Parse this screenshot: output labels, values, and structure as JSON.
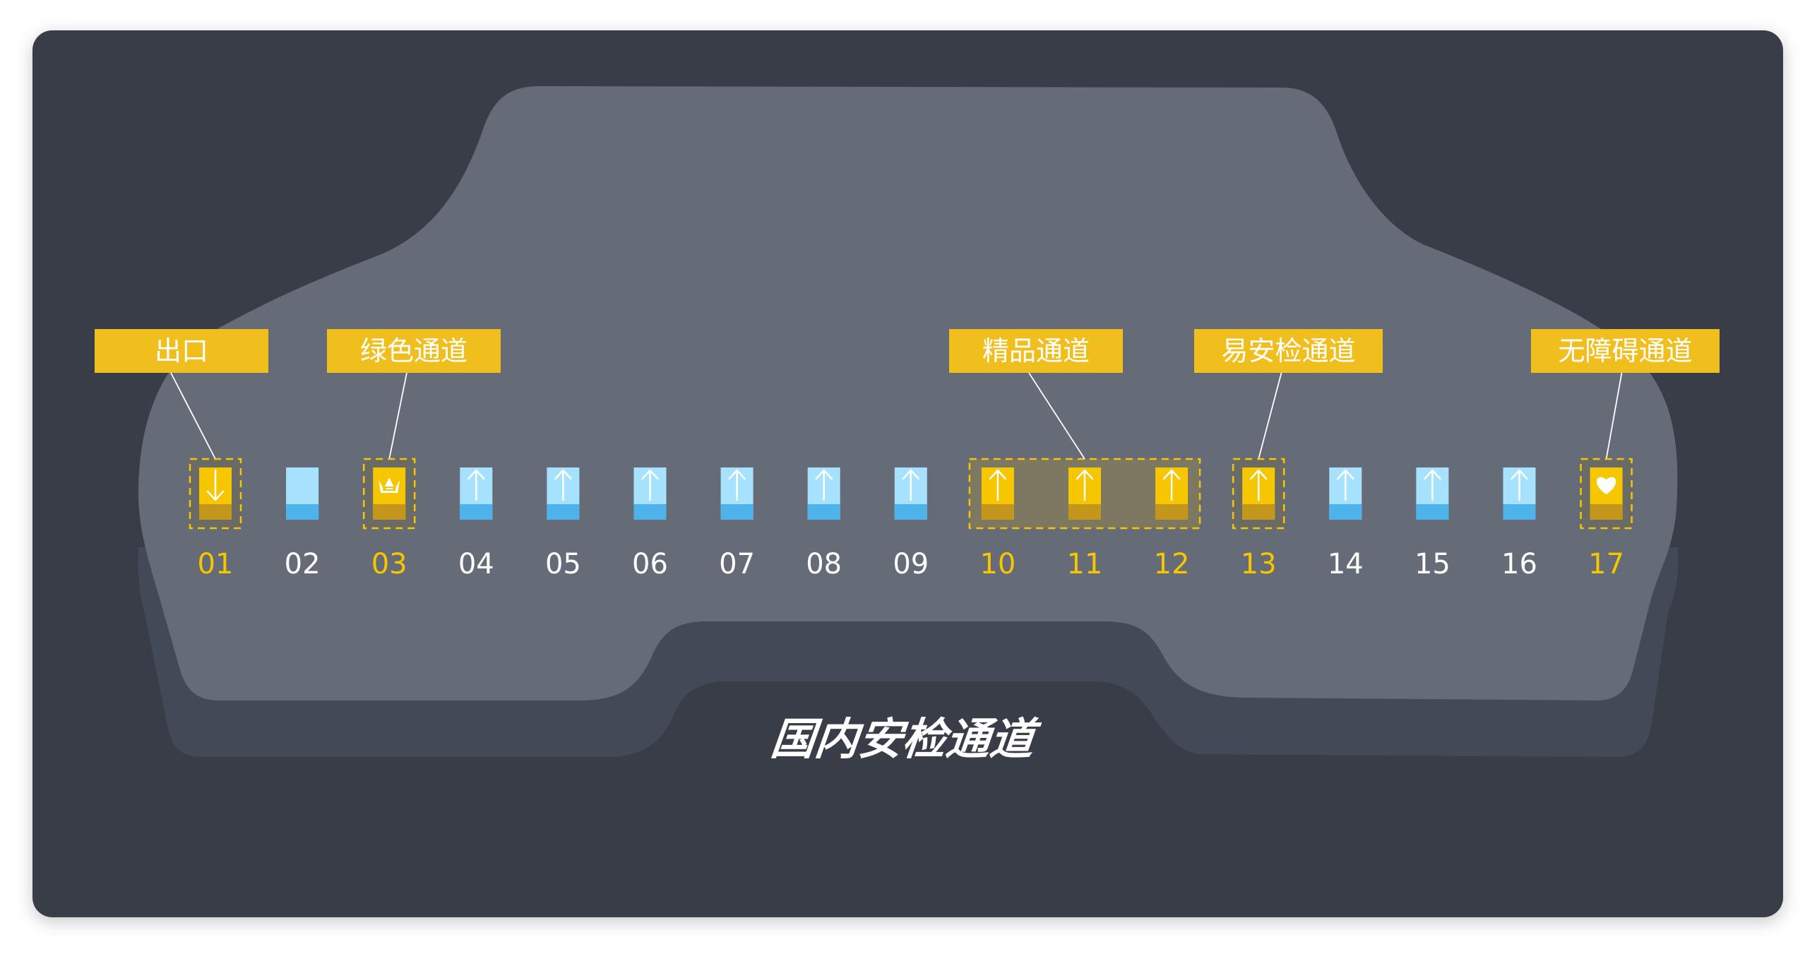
{
  "title": "国内安检通道",
  "colors": {
    "page_bg": "#ffffff",
    "panel_bg": "#373d46",
    "hall_fill": "#656b77",
    "hall_shadow": "#424957",
    "accent_yellow": "#f6c600",
    "label_yellow": "#f0bf1d",
    "lane_blue_light": "#a6e1fe",
    "lane_blue_dark": "#4eb3ea",
    "lane_yellow_dark": "#c4961b",
    "number_white": "#ffffff",
    "number_yellow": "#f6c600"
  },
  "lanes": [
    {
      "number": "01",
      "type": "special",
      "icon": "arrow-down-icon"
    },
    {
      "number": "02",
      "type": "normal",
      "icon": ""
    },
    {
      "number": "03",
      "type": "special",
      "icon": "crown-icon"
    },
    {
      "number": "04",
      "type": "normal",
      "icon": "arrow-up-icon"
    },
    {
      "number": "05",
      "type": "normal",
      "icon": "arrow-up-icon"
    },
    {
      "number": "06",
      "type": "normal",
      "icon": "arrow-up-icon"
    },
    {
      "number": "07",
      "type": "normal",
      "icon": "arrow-up-icon"
    },
    {
      "number": "08",
      "type": "normal",
      "icon": "arrow-up-icon"
    },
    {
      "number": "09",
      "type": "normal",
      "icon": "arrow-up-icon"
    },
    {
      "number": "10",
      "type": "special",
      "icon": "arrow-up-icon"
    },
    {
      "number": "11",
      "type": "special",
      "icon": "arrow-up-icon"
    },
    {
      "number": "12",
      "type": "special",
      "icon": "arrow-up-icon"
    },
    {
      "number": "13",
      "type": "special",
      "icon": "arrow-up-icon"
    },
    {
      "number": "14",
      "type": "normal",
      "icon": "arrow-up-icon"
    },
    {
      "number": "15",
      "type": "normal",
      "icon": "arrow-up-icon"
    },
    {
      "number": "16",
      "type": "normal",
      "icon": "arrow-up-icon"
    },
    {
      "number": "17",
      "type": "special",
      "icon": "heart-icon"
    }
  ],
  "callouts": [
    {
      "text": "出口",
      "lanes": [
        "01"
      ]
    },
    {
      "text": "绿色通道",
      "lanes": [
        "03"
      ]
    },
    {
      "text": "精品通道",
      "lanes": [
        "10",
        "11",
        "12"
      ]
    },
    {
      "text": "易安检通道",
      "lanes": [
        "13"
      ]
    },
    {
      "text": "无障碍通道",
      "lanes": [
        "17"
      ]
    }
  ]
}
